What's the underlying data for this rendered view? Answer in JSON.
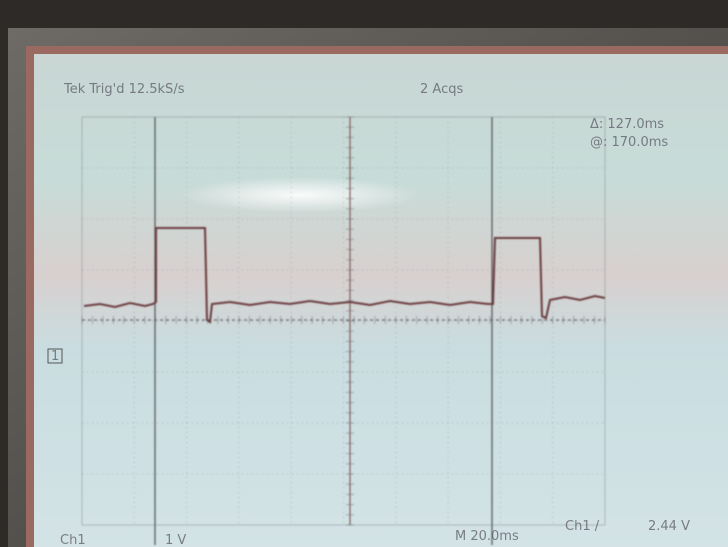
{
  "screen": {
    "header_left": "Tek Trig'd 12.5kS/s",
    "header_right": "2 Acqs",
    "cursor_delta": "Δ: 127.0ms",
    "cursor_at": "@: 170.0ms",
    "ch_marker": "1",
    "footer_ch": "Ch1",
    "footer_scale": "1 V",
    "footer_timebase": "M 20.0ms",
    "footer_trigger": "Ch1 /",
    "footer_level": "2.44 V"
  }
}
